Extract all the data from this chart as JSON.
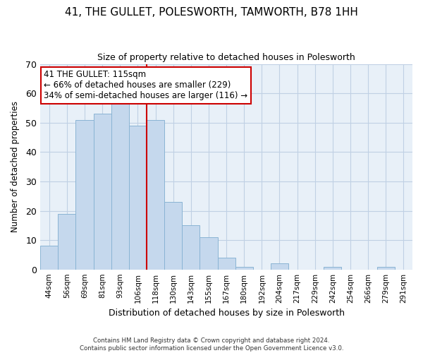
{
  "title": "41, THE GULLET, POLESWORTH, TAMWORTH, B78 1HH",
  "subtitle": "Size of property relative to detached houses in Polesworth",
  "xlabel": "Distribution of detached houses by size in Polesworth",
  "ylabel": "Number of detached properties",
  "categories": [
    "44sqm",
    "56sqm",
    "69sqm",
    "81sqm",
    "93sqm",
    "106sqm",
    "118sqm",
    "130sqm",
    "143sqm",
    "155sqm",
    "167sqm",
    "180sqm",
    "192sqm",
    "204sqm",
    "217sqm",
    "229sqm",
    "242sqm",
    "254sqm",
    "266sqm",
    "279sqm",
    "291sqm"
  ],
  "values": [
    8,
    19,
    51,
    53,
    58,
    49,
    51,
    23,
    15,
    11,
    4,
    1,
    0,
    2,
    0,
    0,
    1,
    0,
    0,
    1,
    0
  ],
  "bar_color": "#c5d8ed",
  "bar_edge_color": "#8ab4d4",
  "grid_color": "#c0d0e4",
  "bg_color": "#e8f0f8",
  "reference_line_x": 6,
  "reference_line_color": "#cc0000",
  "annotation_text": "41 THE GULLET: 115sqm\n← 66% of detached houses are smaller (229)\n34% of semi-detached houses are larger (116) →",
  "annotation_box_color": "#ffffff",
  "annotation_box_edge": "#cc0000",
  "footer": "Contains HM Land Registry data © Crown copyright and database right 2024.\nContains public sector information licensed under the Open Government Licence v3.0.",
  "ylim": [
    0,
    70
  ],
  "yticks": [
    0,
    10,
    20,
    30,
    40,
    50,
    60,
    70
  ],
  "title_fontsize": 11,
  "subtitle_fontsize": 9
}
